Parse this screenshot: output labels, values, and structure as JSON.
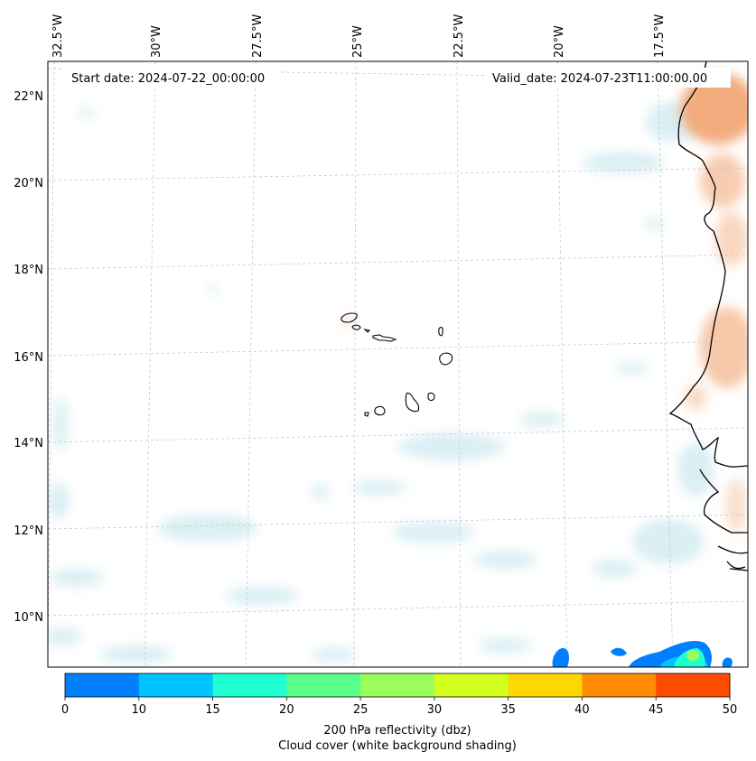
{
  "map": {
    "start_date_text": "Start date: 2024-07-22_00:00:00",
    "valid_date_text": "Valid_date: 2024-07-23T11:00:00.00",
    "lon_labels": [
      "32.5°W",
      "30°W",
      "27.5°W",
      "25°W",
      "22.5°W",
      "20°W",
      "17.5°W"
    ],
    "lat_labels": [
      "22°N",
      "20°N",
      "18°N",
      "16°N",
      "14°N",
      "12°N",
      "10°N"
    ],
    "gridlines": true,
    "coastline_color": "#000000",
    "features": [
      "Cape Verde islands",
      "West African coastline"
    ]
  },
  "colorbar": {
    "ticks": [
      "0",
      "10",
      "15",
      "20",
      "25",
      "30",
      "35",
      "40",
      "45",
      "50"
    ],
    "colors": [
      "#0080ff",
      "#00c4ff",
      "#1effd2",
      "#5aff8c",
      "#9aff5a",
      "#d2ff1e",
      "#ffd700",
      "#ff8c00",
      "#ff4c00"
    ],
    "label_line1": "200 hPa reflectivity (dbz)",
    "label_line2": "Cloud cover (white background shading)"
  }
}
